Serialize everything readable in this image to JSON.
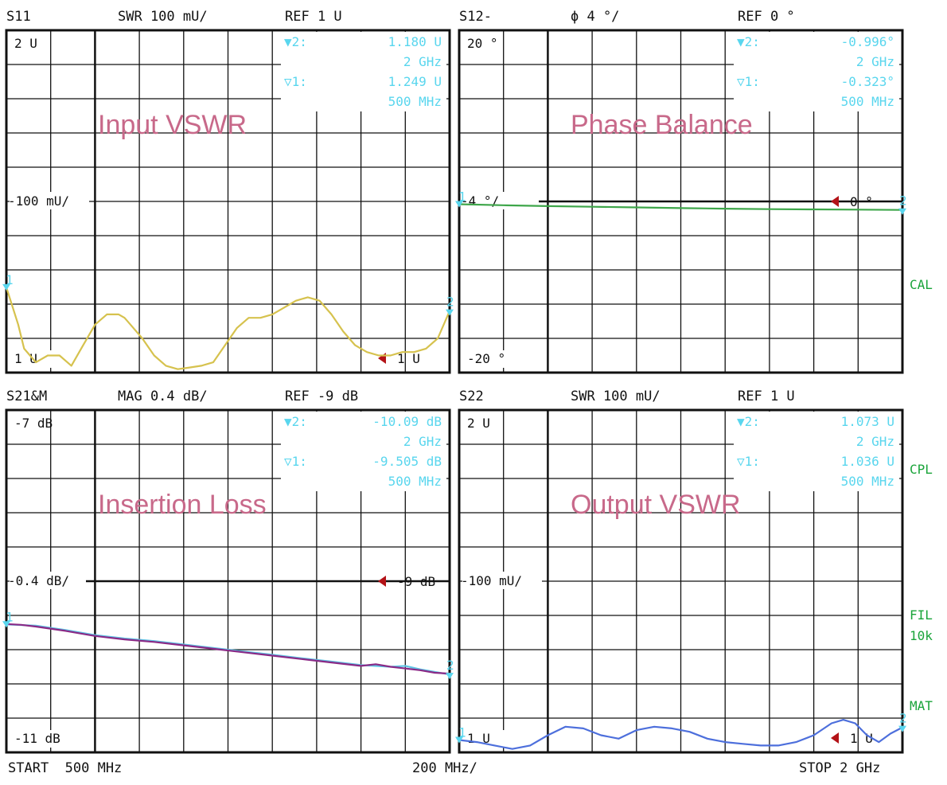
{
  "footer": {
    "start": "START  500 MHz",
    "span": "200 MHz/",
    "stop": "STOP 2 GHz"
  },
  "side_labels": [
    "CAL",
    "CPL",
    "FIL",
    "10k",
    "MAT"
  ],
  "colors": {
    "grid": "#111111",
    "marker_text": "#59d6ee",
    "overlay": "#c8698a",
    "ref": "#b31217",
    "side_label": "#1aa43a"
  },
  "chart_data": [
    {
      "type": "line",
      "id": "s11",
      "title": "Input VSWR",
      "header": {
        "param": "S11",
        "scale": "SWR 100 mU/",
        "ref": "REF 1 U"
      },
      "labels": {
        "top": "2 U",
        "mid": "100 mU/",
        "bottom": "1 U"
      },
      "ylim": [
        1.0,
        2.0
      ],
      "xlim_mhz": [
        500,
        2000
      ],
      "ref_value": 1.0,
      "ref_label": "1 U",
      "ref_line": false,
      "markers": [
        {
          "id": "▼2:",
          "value": "1.180  U",
          "freq": "2 GHz"
        },
        {
          "id": "▽1:",
          "value": "1.249  U",
          "freq": "500 MHz"
        }
      ],
      "series": [
        {
          "color": "#d6c24e",
          "x": [
            500,
            540,
            560,
            600,
            640,
            680,
            720,
            760,
            800,
            840,
            880,
            900,
            920,
            960,
            1000,
            1040,
            1080,
            1120,
            1160,
            1200,
            1240,
            1280,
            1320,
            1360,
            1400,
            1440,
            1480,
            1520,
            1560,
            1600,
            1640,
            1680,
            1720,
            1760,
            1800,
            1840,
            1880,
            1920,
            1960,
            2000
          ],
          "y": [
            1.249,
            1.14,
            1.07,
            1.03,
            1.05,
            1.05,
            1.02,
            1.08,
            1.14,
            1.17,
            1.17,
            1.16,
            1.14,
            1.1,
            1.05,
            1.02,
            1.01,
            1.015,
            1.02,
            1.03,
            1.08,
            1.13,
            1.16,
            1.16,
            1.17,
            1.19,
            1.21,
            1.22,
            1.21,
            1.17,
            1.12,
            1.08,
            1.06,
            1.05,
            1.05,
            1.06,
            1.06,
            1.07,
            1.1,
            1.18
          ]
        }
      ]
    },
    {
      "type": "line",
      "id": "s12",
      "title": "Phase Balance",
      "header": {
        "param": "S12-",
        "scale": "ϕ   4 °/",
        "ref": "REF 0 °"
      },
      "labels": {
        "top": "20 °",
        "mid": "4 °/",
        "bottom": "-20 °"
      },
      "ylim": [
        -20,
        20
      ],
      "xlim_mhz": [
        500,
        2000
      ],
      "ref_value": 0,
      "ref_label": "0 °",
      "ref_line": true,
      "markers": [
        {
          "id": "▼2:",
          "value": "-0.996°",
          "freq": "2 GHz"
        },
        {
          "id": "▽1:",
          "value": "-0.323°",
          "freq": "500 MHz"
        }
      ],
      "series": [
        {
          "color": "#3ea64a",
          "x": [
            500,
            650,
            800,
            950,
            1100,
            1250,
            1400,
            1550,
            1700,
            1850,
            2000
          ],
          "y": [
            -0.323,
            -0.45,
            -0.55,
            -0.62,
            -0.7,
            -0.78,
            -0.85,
            -0.9,
            -0.93,
            -0.96,
            -0.996
          ]
        }
      ]
    },
    {
      "type": "line",
      "id": "s21",
      "title": "Insertion Loss",
      "header": {
        "param": "S21&M",
        "scale": "MAG 0.4 dB/",
        "ref": "REF -9 dB"
      },
      "labels": {
        "top": "-7 dB",
        "mid": "0.4 dB/",
        "bottom": "-11 dB"
      },
      "ylim": [
        -11,
        -7
      ],
      "xlim_mhz": [
        500,
        2000
      ],
      "ref_value": -9,
      "ref_label": "-9 dB",
      "ref_line": true,
      "markers": [
        {
          "id": "▼2:",
          "value": "-10.09 dB",
          "freq": "2 GHz"
        },
        {
          "id": "▽1:",
          "value": "-9.505 dB",
          "freq": "500 MHz"
        }
      ],
      "series": [
        {
          "color": "#5fc3e4",
          "x": [
            500,
            600,
            700,
            800,
            900,
            1000,
            1100,
            1200,
            1300,
            1400,
            1500,
            1600,
            1700,
            1800,
            1850,
            1900,
            2000
          ],
          "y": [
            -9.505,
            -9.52,
            -9.57,
            -9.63,
            -9.67,
            -9.7,
            -9.74,
            -9.78,
            -9.82,
            -9.86,
            -9.9,
            -9.94,
            -9.98,
            -10.0,
            -9.99,
            -10.03,
            -10.09
          ]
        },
        {
          "color": "#8a2a86",
          "x": [
            500,
            550,
            600,
            700,
            800,
            900,
            1000,
            1100,
            1200,
            1300,
            1400,
            1500,
            1600,
            1700,
            1750,
            1800,
            1850,
            1900,
            1950,
            2000
          ],
          "y": [
            -9.5,
            -9.51,
            -9.53,
            -9.58,
            -9.64,
            -9.68,
            -9.71,
            -9.75,
            -9.79,
            -9.83,
            -9.87,
            -9.91,
            -9.95,
            -9.99,
            -9.97,
            -10.0,
            -10.02,
            -10.04,
            -10.07,
            -10.08
          ]
        }
      ]
    },
    {
      "type": "line",
      "id": "s22",
      "title": "Output VSWR",
      "header": {
        "param": "S22",
        "scale": "SWR 100 mU/",
        "ref": "REF 1 U"
      },
      "labels": {
        "top": "2 U",
        "mid": "100 mU/",
        "bottom": "1 U"
      },
      "ylim": [
        1.0,
        2.0
      ],
      "xlim_mhz": [
        500,
        2000
      ],
      "ref_value": 1.0,
      "ref_label": "1 U",
      "ref_line": false,
      "markers": [
        {
          "id": "▼2:",
          "value": "1.073  U",
          "freq": "2 GHz"
        },
        {
          "id": "▽1:",
          "value": "1.036  U",
          "freq": "500 MHz"
        }
      ],
      "series": [
        {
          "color": "#4d6fdc",
          "x": [
            500,
            560,
            620,
            680,
            740,
            800,
            860,
            920,
            980,
            1040,
            1100,
            1160,
            1220,
            1280,
            1340,
            1400,
            1460,
            1520,
            1580,
            1640,
            1700,
            1760,
            1800,
            1840,
            1880,
            1920,
            1960,
            2000
          ],
          "y": [
            1.036,
            1.03,
            1.02,
            1.01,
            1.02,
            1.05,
            1.075,
            1.07,
            1.05,
            1.04,
            1.065,
            1.075,
            1.07,
            1.06,
            1.04,
            1.03,
            1.025,
            1.02,
            1.02,
            1.03,
            1.05,
            1.085,
            1.095,
            1.085,
            1.05,
            1.03,
            1.055,
            1.073
          ]
        }
      ]
    }
  ]
}
